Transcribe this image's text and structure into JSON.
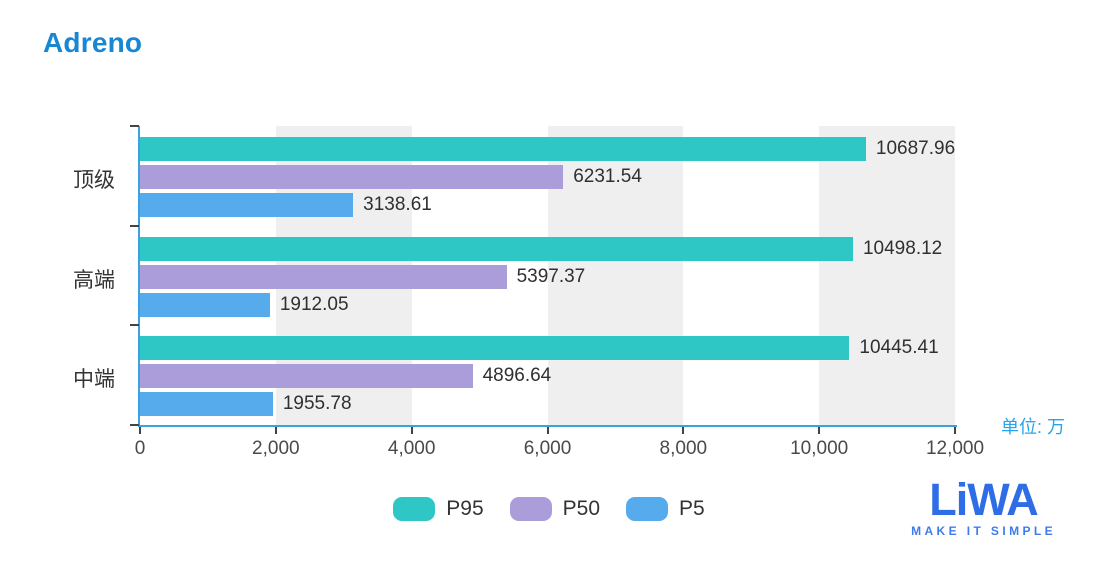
{
  "title": "Adreno",
  "unit_label": "单位: 万",
  "colors": {
    "title": "#1787d3",
    "axis": "#3ba1e3",
    "tick": "#444444",
    "split_band": "#efefef",
    "unit": "#28a4ec",
    "logo": "#2e6de6",
    "logo_tagline": "#3f7ceb",
    "p95": "#2fc6c6",
    "p50": "#ab9cda",
    "p5": "#55abec"
  },
  "chart_data": {
    "type": "bar",
    "orientation": "horizontal",
    "title": "Adreno",
    "unit": "单位: 万",
    "categories": [
      "顶级",
      "高端",
      "中端"
    ],
    "series": [
      {
        "name": "P95",
        "color": "#2fc6c6",
        "values": [
          10687.96,
          10498.12,
          10445.41
        ]
      },
      {
        "name": "P50",
        "color": "#ab9cda",
        "values": [
          6231.54,
          5397.37,
          4896.64
        ]
      },
      {
        "name": "P5",
        "color": "#55abec",
        "values": [
          3138.61,
          1912.05,
          1955.78
        ]
      }
    ],
    "value_labels": [
      [
        "10687.96",
        "10498.12",
        "10445.41"
      ],
      [
        "6231.54",
        "5397.37",
        "4896.64"
      ],
      [
        "3138.61",
        "1912.05",
        "1955.78"
      ]
    ],
    "x_axis": {
      "min": 0,
      "max": 12000,
      "tick_interval": 2000,
      "tick_labels": [
        "0",
        "2,000",
        "4,000",
        "6,000",
        "8,000",
        "10,000",
        "12,000"
      ]
    },
    "grid": "alternating-vertical-bands",
    "legend_position": "bottom-center"
  },
  "legend": [
    {
      "label": "P95",
      "color": "#2fc6c6"
    },
    {
      "label": "P50",
      "color": "#ab9cda"
    },
    {
      "label": "P5",
      "color": "#55abec"
    }
  ],
  "logo": {
    "text": "LiWA",
    "tagline": "MAKE IT SIMPLE"
  }
}
